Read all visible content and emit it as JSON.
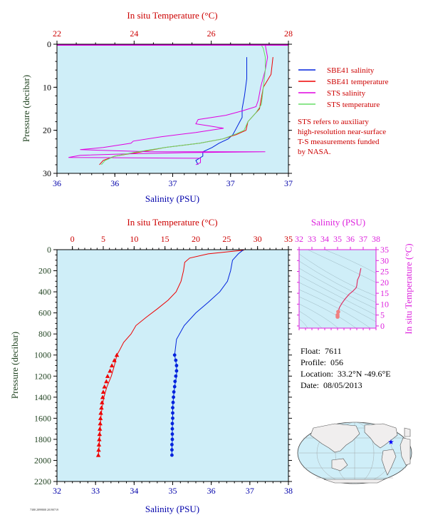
{
  "colors": {
    "plot_bg": "#cfeef8",
    "temperature": "#ee0000",
    "salinity": "#0022dd",
    "sts_salinity": "#e000e0",
    "sts_temperature": "#66dd66",
    "inset_axis": "#dd22dd",
    "pressure_label": "#224422",
    "top_temp_label": "#cc0000",
    "salinity_label": "#0000aa",
    "note": "#cc0000"
  },
  "fine_print": "7388 2899808 20190719",
  "info": {
    "float_label": "Float:",
    "float_value": "7611",
    "profile_label": "Profile:",
    "profile_value": "056",
    "location_label": "Location:",
    "location_value": "33.2°N  -49.6°E",
    "date_label": "Date:",
    "date_value": "08/05/2013"
  },
  "chart_data": [
    {
      "type": "line",
      "title": "",
      "x_top_label": "In situ Temperature (°C)",
      "x_top_ticks": [
        "22",
        "24",
        "26",
        "28"
      ],
      "x_top_range": [
        22,
        28
      ],
      "x_bottom_label": "Salinity (PSU)",
      "x_bottom_ticks": [
        "36",
        "36",
        "37",
        "37",
        "37"
      ],
      "x_bottom_range": [
        36.0,
        37.0
      ],
      "y_label": "Pressure (decibar)",
      "y_ticks": [
        "0",
        "10",
        "20",
        "30"
      ],
      "y_range": [
        0,
        30
      ],
      "y_inverted": true,
      "legend": {
        "placement": "right",
        "entries": [
          "SBE41 salinity",
          "SBE41 temperature",
          "STS salinity",
          "STS temperature"
        ]
      },
      "note": [
        "STS refers to auxiliary",
        "high-resolution near-surface",
        "T-S measurements funded",
        "by NASA."
      ],
      "series": [
        {
          "name": "SBE41 salinity",
          "axis": "bottom",
          "color": "#0022dd",
          "values": [
            [
              36.82,
              3
            ],
            [
              36.82,
              8
            ],
            [
              36.81,
              12
            ],
            [
              36.8,
              15
            ],
            [
              36.8,
              17
            ],
            [
              36.79,
              18
            ],
            [
              36.77,
              20
            ],
            [
              36.76,
              21
            ],
            [
              36.74,
              22
            ],
            [
              36.7,
              23
            ],
            [
              36.67,
              24
            ],
            [
              36.63,
              25
            ],
            [
              36.63,
              26
            ],
            [
              36.6,
              27
            ],
            [
              36.61,
              28
            ]
          ]
        },
        {
          "name": "SBE41 temperature",
          "axis": "top",
          "color": "#ee0000",
          "values": [
            [
              27.6,
              3
            ],
            [
              27.55,
              7
            ],
            [
              27.35,
              10
            ],
            [
              27.25,
              15
            ],
            [
              26.95,
              18
            ],
            [
              26.9,
              20
            ],
            [
              26.65,
              21
            ],
            [
              26.3,
              22
            ],
            [
              25.7,
              23
            ],
            [
              24.8,
              24
            ],
            [
              24.2,
              25
            ],
            [
              23.5,
              26
            ],
            [
              23.2,
              27
            ],
            [
              23.1,
              28
            ]
          ]
        },
        {
          "name": "STS salinity",
          "axis": "bottom",
          "color": "#e000e0",
          "values": [
            [
              36.9,
              0.2
            ],
            [
              36.91,
              3
            ],
            [
              36.9,
              6
            ],
            [
              36.88,
              10
            ],
            [
              36.87,
              13
            ],
            [
              36.86,
              14.5
            ],
            [
              36.8,
              15.5
            ],
            [
              36.73,
              16.5
            ],
            [
              36.61,
              17.5
            ],
            [
              36.6,
              18.5
            ],
            [
              36.66,
              19
            ],
            [
              36.72,
              19.5
            ],
            [
              36.6,
              20.5
            ],
            [
              36.45,
              21.5
            ],
            [
              36.33,
              22.5
            ],
            [
              36.32,
              23
            ],
            [
              36.2,
              24
            ],
            [
              36.1,
              24.5
            ],
            [
              36.4,
              25
            ],
            [
              36.8,
              25
            ],
            [
              36.9,
              25
            ],
            [
              36.55,
              25.2
            ],
            [
              36.3,
              25.5
            ],
            [
              36.1,
              25.8
            ],
            [
              36.05,
              26.3
            ],
            [
              36.62,
              26.5
            ],
            [
              36.62,
              27.5
            ],
            [
              36.6,
              28
            ]
          ]
        },
        {
          "name": "STS temperature",
          "axis": "top",
          "color": "#66dd66",
          "values": [
            [
              27.3,
              0.2
            ],
            [
              27.35,
              1
            ],
            [
              27.4,
              3
            ],
            [
              27.4,
              6
            ],
            [
              27.35,
              10
            ],
            [
              27.3,
              14
            ],
            [
              27.15,
              16
            ],
            [
              26.95,
              18
            ],
            [
              26.85,
              20
            ],
            [
              26.6,
              21
            ],
            [
              26.3,
              22
            ],
            [
              25.7,
              23
            ],
            [
              24.8,
              24
            ],
            [
              24.1,
              25
            ],
            [
              23.5,
              26
            ],
            [
              23.25,
              27
            ],
            [
              23.15,
              28
            ]
          ]
        }
      ]
    },
    {
      "type": "line",
      "title": "",
      "x_top_label": "In situ Temperature (°C)",
      "x_top_ticks": [
        "0",
        "5",
        "10",
        "15",
        "20",
        "25",
        "30",
        "35"
      ],
      "x_top_range": [
        -2.5,
        35
      ],
      "x_bottom_label": "Salinity (PSU)",
      "x_bottom_ticks": [
        "32",
        "33",
        "34",
        "35",
        "36",
        "37",
        "38"
      ],
      "x_bottom_range": [
        32,
        38
      ],
      "y_label": "Pressure (decibar)",
      "y_ticks": [
        "0",
        "200",
        "400",
        "600",
        "800",
        "1000",
        "1200",
        "1400",
        "1600",
        "1800",
        "2000",
        "2200"
      ],
      "y_range": [
        0,
        2200
      ],
      "y_inverted": true,
      "series": [
        {
          "name": "",
          "axis": "top",
          "color": "#ee0000",
          "values": [
            [
              27.8,
              5
            ],
            [
              26,
              15
            ],
            [
              22,
              40
            ],
            [
              19,
              80
            ],
            [
              18.2,
              120
            ],
            [
              18,
              200
            ],
            [
              17.6,
              300
            ],
            [
              16.8,
              400
            ],
            [
              15.5,
              480
            ],
            [
              13.8,
              560
            ],
            [
              12,
              640
            ],
            [
              10.3,
              720
            ],
            [
              9.5,
              800
            ],
            [
              8.3,
              880
            ],
            [
              7.6,
              960
            ],
            [
              7.2,
              1000
            ],
            [
              6.8,
              1100
            ],
            [
              6.3,
              1200
            ],
            [
              5.6,
              1300
            ],
            [
              5.1,
              1400
            ],
            [
              4.8,
              1500
            ],
            [
              4.6,
              1600
            ],
            [
              4.5,
              1700
            ],
            [
              4.4,
              1800
            ],
            [
              4.3,
              1900
            ],
            [
              4.2,
              1950
            ]
          ]
        },
        {
          "name": "",
          "axis": "bottom",
          "color": "#0022dd",
          "values": [
            [
              36.82,
              5
            ],
            [
              36.7,
              40
            ],
            [
              36.55,
              100
            ],
            [
              36.5,
              200
            ],
            [
              36.42,
              300
            ],
            [
              36.22,
              400
            ],
            [
              35.92,
              500
            ],
            [
              35.6,
              600
            ],
            [
              35.3,
              720
            ],
            [
              35.1,
              850
            ],
            [
              35.05,
              1000
            ],
            [
              35.1,
              1100
            ],
            [
              35.1,
              1200
            ],
            [
              35.05,
              1300
            ],
            [
              35.02,
              1400
            ],
            [
              35.0,
              1500
            ],
            [
              35.0,
              1600
            ],
            [
              34.99,
              1700
            ],
            [
              34.99,
              1800
            ],
            [
              34.98,
              1900
            ],
            [
              34.98,
              1950
            ]
          ]
        }
      ],
      "markers_temperature": [
        [
          7.2,
          1000
        ],
        [
          6.8,
          1050
        ],
        [
          6.4,
          1100
        ],
        [
          6.1,
          1150
        ],
        [
          5.7,
          1200
        ],
        [
          5.5,
          1250
        ],
        [
          5.2,
          1300
        ],
        [
          5.0,
          1350
        ],
        [
          4.9,
          1400
        ],
        [
          4.8,
          1450
        ],
        [
          4.7,
          1500
        ],
        [
          4.6,
          1550
        ],
        [
          4.55,
          1600
        ],
        [
          4.5,
          1650
        ],
        [
          4.45,
          1700
        ],
        [
          4.4,
          1750
        ],
        [
          4.35,
          1800
        ],
        [
          4.3,
          1850
        ],
        [
          4.25,
          1900
        ],
        [
          4.2,
          1950
        ]
      ],
      "markers_salinity": [
        [
          35.05,
          1000
        ],
        [
          35.08,
          1050
        ],
        [
          35.1,
          1100
        ],
        [
          35.1,
          1150
        ],
        [
          35.08,
          1200
        ],
        [
          35.06,
          1250
        ],
        [
          35.05,
          1300
        ],
        [
          35.03,
          1350
        ],
        [
          35.02,
          1400
        ],
        [
          35.01,
          1450
        ],
        [
          35.0,
          1500
        ],
        [
          35.0,
          1550
        ],
        [
          35.0,
          1600
        ],
        [
          34.99,
          1650
        ],
        [
          34.99,
          1700
        ],
        [
          34.99,
          1750
        ],
        [
          34.99,
          1800
        ],
        [
          34.98,
          1850
        ],
        [
          34.98,
          1900
        ],
        [
          34.98,
          1950
        ]
      ]
    },
    {
      "type": "scatter",
      "title": "",
      "x_label": "Salinity (PSU)",
      "x_ticks": [
        "32",
        "33",
        "34",
        "35",
        "36",
        "37",
        "38"
      ],
      "x_range": [
        32,
        38
      ],
      "y_label": "In situ Temperature (°C)",
      "y_ticks": [
        "0",
        "5",
        "10",
        "15",
        "20",
        "25",
        "30",
        "35"
      ],
      "y_range": [
        -1,
        35
      ],
      "series": [
        {
          "name": "",
          "color": "#dd3366",
          "values": [
            [
              35.0,
              4.2
            ],
            [
              35.0,
              5
            ],
            [
              35.05,
              6.5
            ],
            [
              35.15,
              8.5
            ],
            [
              35.35,
              10.5
            ],
            [
              35.6,
              12.5
            ],
            [
              35.9,
              14.5
            ],
            [
              36.2,
              16
            ],
            [
              36.45,
              17.5
            ],
            [
              36.5,
              18.5
            ],
            [
              36.55,
              21
            ],
            [
              36.7,
              23
            ],
            [
              36.82,
              26.5
            ]
          ]
        }
      ]
    }
  ]
}
